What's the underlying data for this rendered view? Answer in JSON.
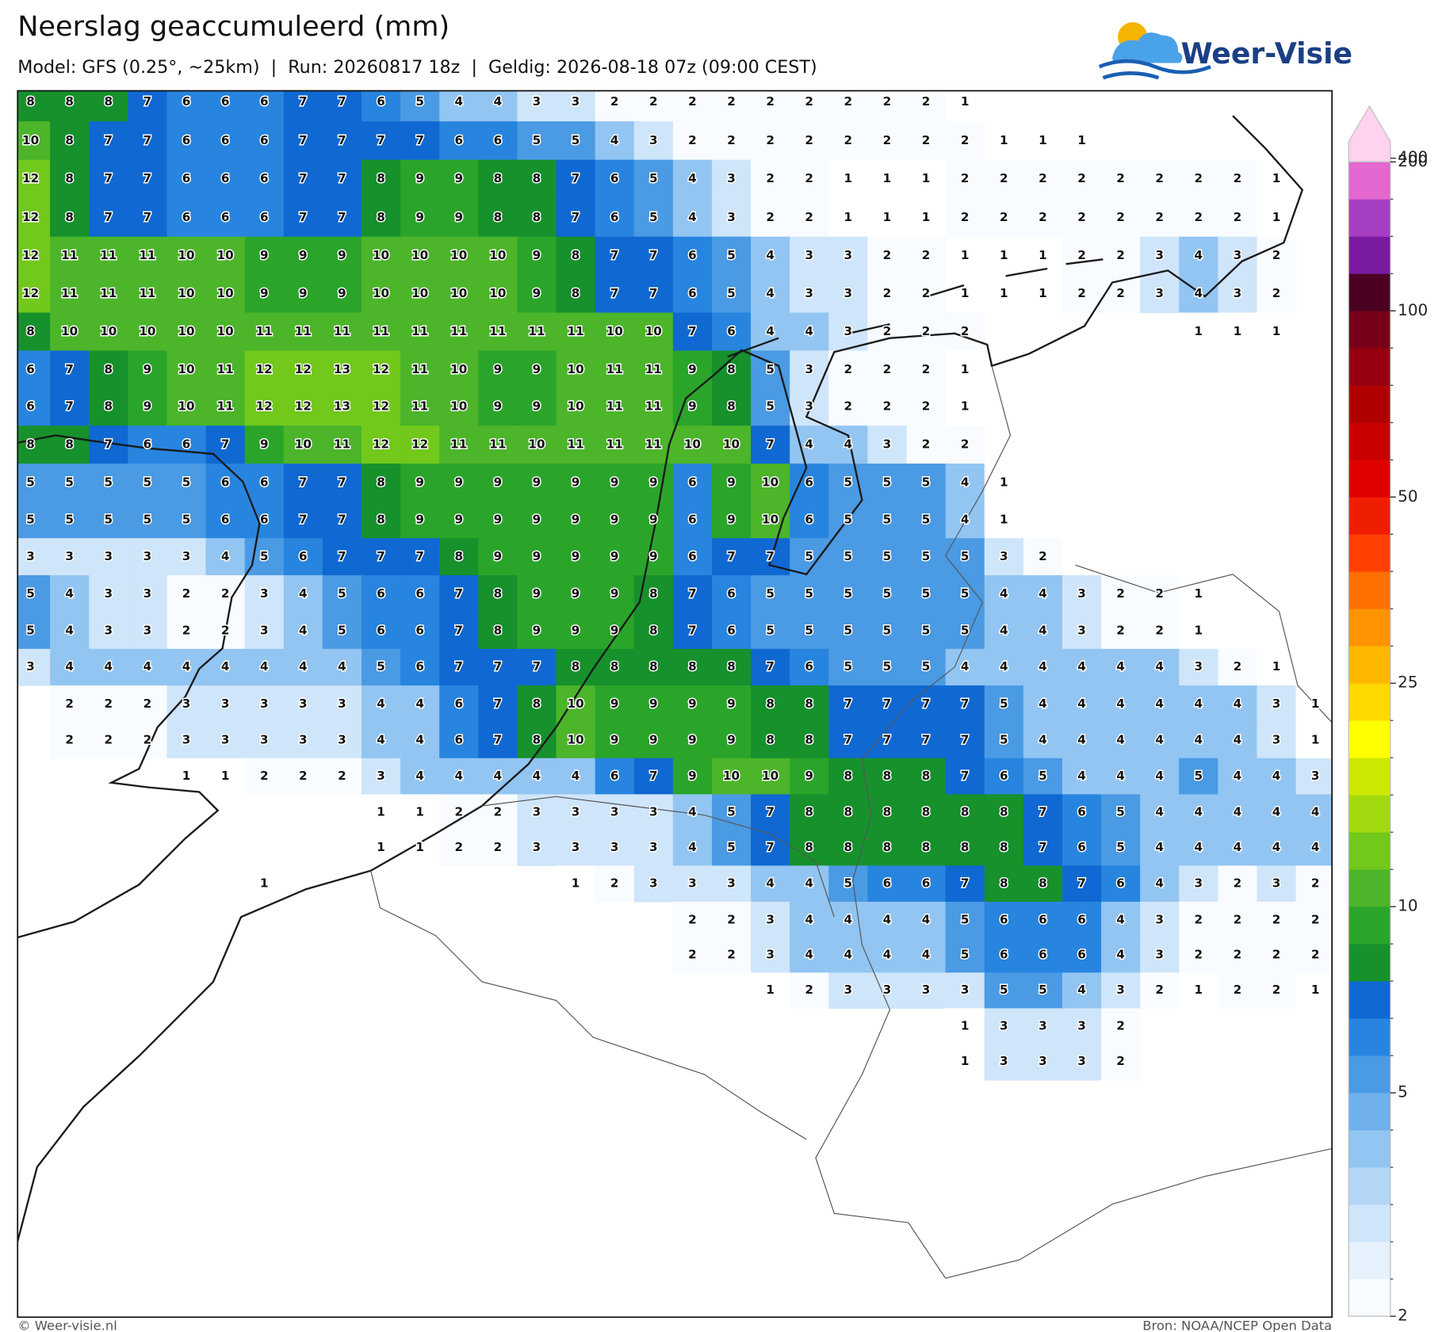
{
  "header": {
    "title": "Neerslag geaccumuleerd (mm)",
    "subtitle": "Model: GFS (0.25°, ~25km)  |  Run: 20260817 18z  |  Geldig: 2026-08-18 07z (09:00 CEST)"
  },
  "logo": "Weer-Visie",
  "grid": {
    "rows": [
      [
        8,
        8,
        8,
        7,
        6,
        6,
        6,
        7,
        7,
        6,
        5,
        4,
        4,
        3,
        3,
        2,
        2,
        2,
        2,
        2,
        2,
        2,
        2,
        2,
        1,
        null,
        null,
        null,
        null,
        null,
        null,
        null,
        null,
        null
      ],
      [
        10,
        8,
        7,
        7,
        6,
        6,
        6,
        7,
        7,
        7,
        7,
        6,
        6,
        5,
        5,
        4,
        3,
        2,
        2,
        2,
        2,
        2,
        2,
        2,
        2,
        1,
        1,
        1,
        null,
        null,
        null,
        null,
        null,
        null
      ],
      [
        12,
        8,
        7,
        7,
        6,
        6,
        6,
        7,
        7,
        8,
        9,
        9,
        8,
        8,
        7,
        6,
        5,
        4,
        3,
        2,
        2,
        1,
        1,
        1,
        2,
        2,
        2,
        2,
        2,
        2,
        2,
        2,
        1,
        null
      ],
      [
        12,
        8,
        7,
        7,
        6,
        6,
        6,
        7,
        7,
        8,
        9,
        9,
        8,
        8,
        7,
        6,
        5,
        4,
        3,
        2,
        2,
        1,
        1,
        1,
        2,
        2,
        2,
        2,
        2,
        2,
        2,
        2,
        1,
        null
      ],
      [
        12,
        11,
        11,
        11,
        10,
        10,
        9,
        9,
        9,
        10,
        10,
        10,
        10,
        9,
        8,
        7,
        7,
        6,
        5,
        4,
        3,
        3,
        2,
        2,
        1,
        1,
        1,
        2,
        2,
        3,
        4,
        3,
        2,
        null
      ],
      [
        12,
        11,
        11,
        11,
        10,
        10,
        9,
        9,
        9,
        10,
        10,
        10,
        10,
        9,
        8,
        7,
        7,
        6,
        5,
        4,
        3,
        3,
        2,
        2,
        1,
        1,
        1,
        2,
        2,
        3,
        4,
        3,
        2,
        null
      ],
      [
        8,
        10,
        10,
        10,
        10,
        10,
        11,
        11,
        11,
        11,
        11,
        11,
        11,
        11,
        11,
        10,
        10,
        7,
        6,
        4,
        4,
        3,
        2,
        2,
        2,
        null,
        null,
        null,
        null,
        null,
        1,
        1,
        1,
        null
      ],
      [
        6,
        7,
        8,
        9,
        10,
        11,
        12,
        12,
        13,
        12,
        11,
        10,
        9,
        9,
        10,
        11,
        11,
        9,
        8,
        5,
        3,
        2,
        2,
        2,
        1,
        null,
        null,
        null,
        null,
        null,
        null,
        null,
        null,
        null
      ],
      [
        6,
        7,
        8,
        9,
        10,
        11,
        12,
        12,
        13,
        12,
        11,
        10,
        9,
        9,
        10,
        11,
        11,
        9,
        8,
        5,
        3,
        2,
        2,
        2,
        1,
        null,
        null,
        null,
        null,
        null,
        null,
        null,
        null,
        null
      ],
      [
        8,
        8,
        7,
        6,
        6,
        7,
        9,
        10,
        11,
        12,
        12,
        11,
        11,
        10,
        11,
        11,
        11,
        10,
        10,
        7,
        4,
        4,
        3,
        2,
        2,
        null,
        null,
        null,
        null,
        null,
        null,
        null,
        null,
        null
      ],
      [
        5,
        5,
        5,
        5,
        5,
        6,
        6,
        7,
        7,
        8,
        9,
        9,
        9,
        9,
        9,
        9,
        9,
        6,
        9,
        10,
        6,
        5,
        5,
        5,
        4,
        1,
        null,
        null,
        null,
        null,
        null,
        null,
        null,
        null
      ],
      [
        5,
        5,
        5,
        5,
        5,
        6,
        6,
        7,
        7,
        8,
        9,
        9,
        9,
        9,
        9,
        9,
        9,
        6,
        9,
        10,
        6,
        5,
        5,
        5,
        4,
        1,
        null,
        null,
        null,
        null,
        null,
        null,
        null,
        null
      ],
      [
        3,
        3,
        3,
        3,
        3,
        4,
        5,
        6,
        7,
        7,
        7,
        8,
        9,
        9,
        9,
        9,
        9,
        6,
        7,
        7,
        5,
        5,
        5,
        5,
        5,
        3,
        2,
        null,
        null,
        null,
        null,
        null,
        null,
        null
      ],
      [
        5,
        4,
        3,
        3,
        2,
        2,
        3,
        4,
        5,
        6,
        6,
        7,
        8,
        9,
        9,
        9,
        8,
        7,
        6,
        5,
        5,
        5,
        5,
        5,
        5,
        4,
        4,
        3,
        2,
        2,
        1,
        null,
        null,
        null
      ],
      [
        5,
        4,
        3,
        3,
        2,
        2,
        3,
        4,
        5,
        6,
        6,
        7,
        8,
        9,
        9,
        9,
        8,
        7,
        6,
        5,
        5,
        5,
        5,
        5,
        5,
        4,
        4,
        3,
        2,
        2,
        1,
        null,
        null,
        null
      ],
      [
        3,
        4,
        4,
        4,
        4,
        4,
        4,
        4,
        4,
        5,
        6,
        7,
        7,
        7,
        8,
        8,
        8,
        8,
        8,
        7,
        6,
        5,
        5,
        5,
        4,
        4,
        4,
        4,
        4,
        4,
        3,
        2,
        1,
        null
      ],
      [
        null,
        2,
        2,
        2,
        3,
        3,
        3,
        3,
        3,
        4,
        4,
        6,
        7,
        8,
        10,
        9,
        9,
        9,
        9,
        8,
        8,
        7,
        7,
        7,
        7,
        5,
        4,
        4,
        4,
        4,
        4,
        4,
        3,
        1
      ],
      [
        null,
        2,
        2,
        2,
        3,
        3,
        3,
        3,
        3,
        4,
        4,
        6,
        7,
        8,
        10,
        9,
        9,
        9,
        9,
        8,
        8,
        7,
        7,
        7,
        7,
        5,
        4,
        4,
        4,
        4,
        4,
        4,
        3,
        1
      ],
      [
        null,
        null,
        null,
        null,
        1,
        1,
        2,
        2,
        2,
        3,
        4,
        4,
        4,
        4,
        4,
        6,
        7,
        9,
        10,
        10,
        9,
        8,
        8,
        8,
        7,
        6,
        5,
        4,
        4,
        4,
        5,
        4,
        4,
        3
      ],
      [
        null,
        null,
        null,
        null,
        null,
        null,
        null,
        null,
        null,
        1,
        1,
        2,
        2,
        3,
        3,
        3,
        3,
        4,
        5,
        7,
        8,
        8,
        8,
        8,
        8,
        8,
        7,
        6,
        5,
        4,
        4,
        4,
        4,
        4
      ],
      [
        null,
        null,
        null,
        null,
        null,
        null,
        null,
        null,
        null,
        1,
        1,
        2,
        2,
        3,
        3,
        3,
        3,
        4,
        5,
        7,
        8,
        8,
        8,
        8,
        8,
        8,
        7,
        6,
        5,
        4,
        4,
        4,
        4,
        4
      ],
      [
        null,
        null,
        null,
        null,
        null,
        null,
        1,
        null,
        null,
        null,
        null,
        null,
        null,
        null,
        1,
        2,
        3,
        3,
        3,
        4,
        4,
        5,
        6,
        6,
        7,
        8,
        8,
        7,
        6,
        4,
        3,
        2,
        3,
        2
      ],
      [
        null,
        null,
        null,
        null,
        null,
        null,
        null,
        null,
        null,
        null,
        null,
        null,
        null,
        null,
        null,
        null,
        null,
        2,
        2,
        3,
        4,
        4,
        4,
        4,
        5,
        6,
        6,
        6,
        4,
        3,
        2,
        2,
        2,
        2
      ],
      [
        null,
        null,
        null,
        null,
        null,
        null,
        null,
        null,
        null,
        null,
        null,
        null,
        null,
        null,
        null,
        null,
        null,
        2,
        2,
        3,
        4,
        4,
        4,
        4,
        5,
        6,
        6,
        6,
        4,
        3,
        2,
        2,
        2,
        2
      ],
      [
        null,
        null,
        null,
        null,
        null,
        null,
        null,
        null,
        null,
        null,
        null,
        null,
        null,
        null,
        null,
        null,
        null,
        null,
        null,
        1,
        2,
        3,
        3,
        3,
        3,
        5,
        5,
        4,
        3,
        2,
        1,
        2,
        2,
        1
      ],
      [
        null,
        null,
        null,
        null,
        null,
        null,
        null,
        null,
        null,
        null,
        null,
        null,
        null,
        null,
        null,
        null,
        null,
        null,
        null,
        null,
        null,
        null,
        null,
        null,
        1,
        3,
        3,
        3,
        2,
        null,
        null,
        null,
        null,
        null
      ],
      [
        null,
        null,
        null,
        null,
        null,
        null,
        null,
        null,
        null,
        null,
        null,
        null,
        null,
        null,
        null,
        null,
        null,
        null,
        null,
        null,
        null,
        null,
        null,
        null,
        1,
        3,
        3,
        3,
        2,
        null,
        null,
        null,
        null,
        null
      ]
    ]
  },
  "colorbar": {
    "levels": [
      2,
      2.5,
      3,
      3.5,
      4,
      4.5,
      5,
      6,
      7,
      8,
      9,
      10,
      12,
      14,
      16,
      18,
      20,
      25,
      30,
      35,
      40,
      45,
      50,
      60,
      70,
      80,
      90,
      100,
      125,
      150,
      175,
      200,
      400
    ],
    "colors": [
      "#f8fbff",
      "#e5f1fc",
      "#cfe5fa",
      "#b3d6f6",
      "#92c5f2",
      "#6fb0ec",
      "#4a9ae4",
      "#2785df",
      "#1068d2",
      "#16912c",
      "#2aa52a",
      "#4cb52a",
      "#72c81b",
      "#a2d90e",
      "#cde800",
      "#ffff00",
      "#ffd800",
      "#ffb800",
      "#ff9400",
      "#ff7000",
      "#ff4000",
      "#f01e00",
      "#e00000",
      "#c80000",
      "#b00000",
      "#960010",
      "#780018",
      "#4b0022",
      "#7a1aa0",
      "#a63fc2",
      "#e466cf",
      "#ffd2f0"
    ],
    "ticks": [
      2,
      5,
      10,
      25,
      50,
      100,
      200,
      400
    ]
  },
  "footer": {
    "left": "© Weer-visie.nl",
    "right": "Bron: NOAA/NCEP Open Data"
  }
}
